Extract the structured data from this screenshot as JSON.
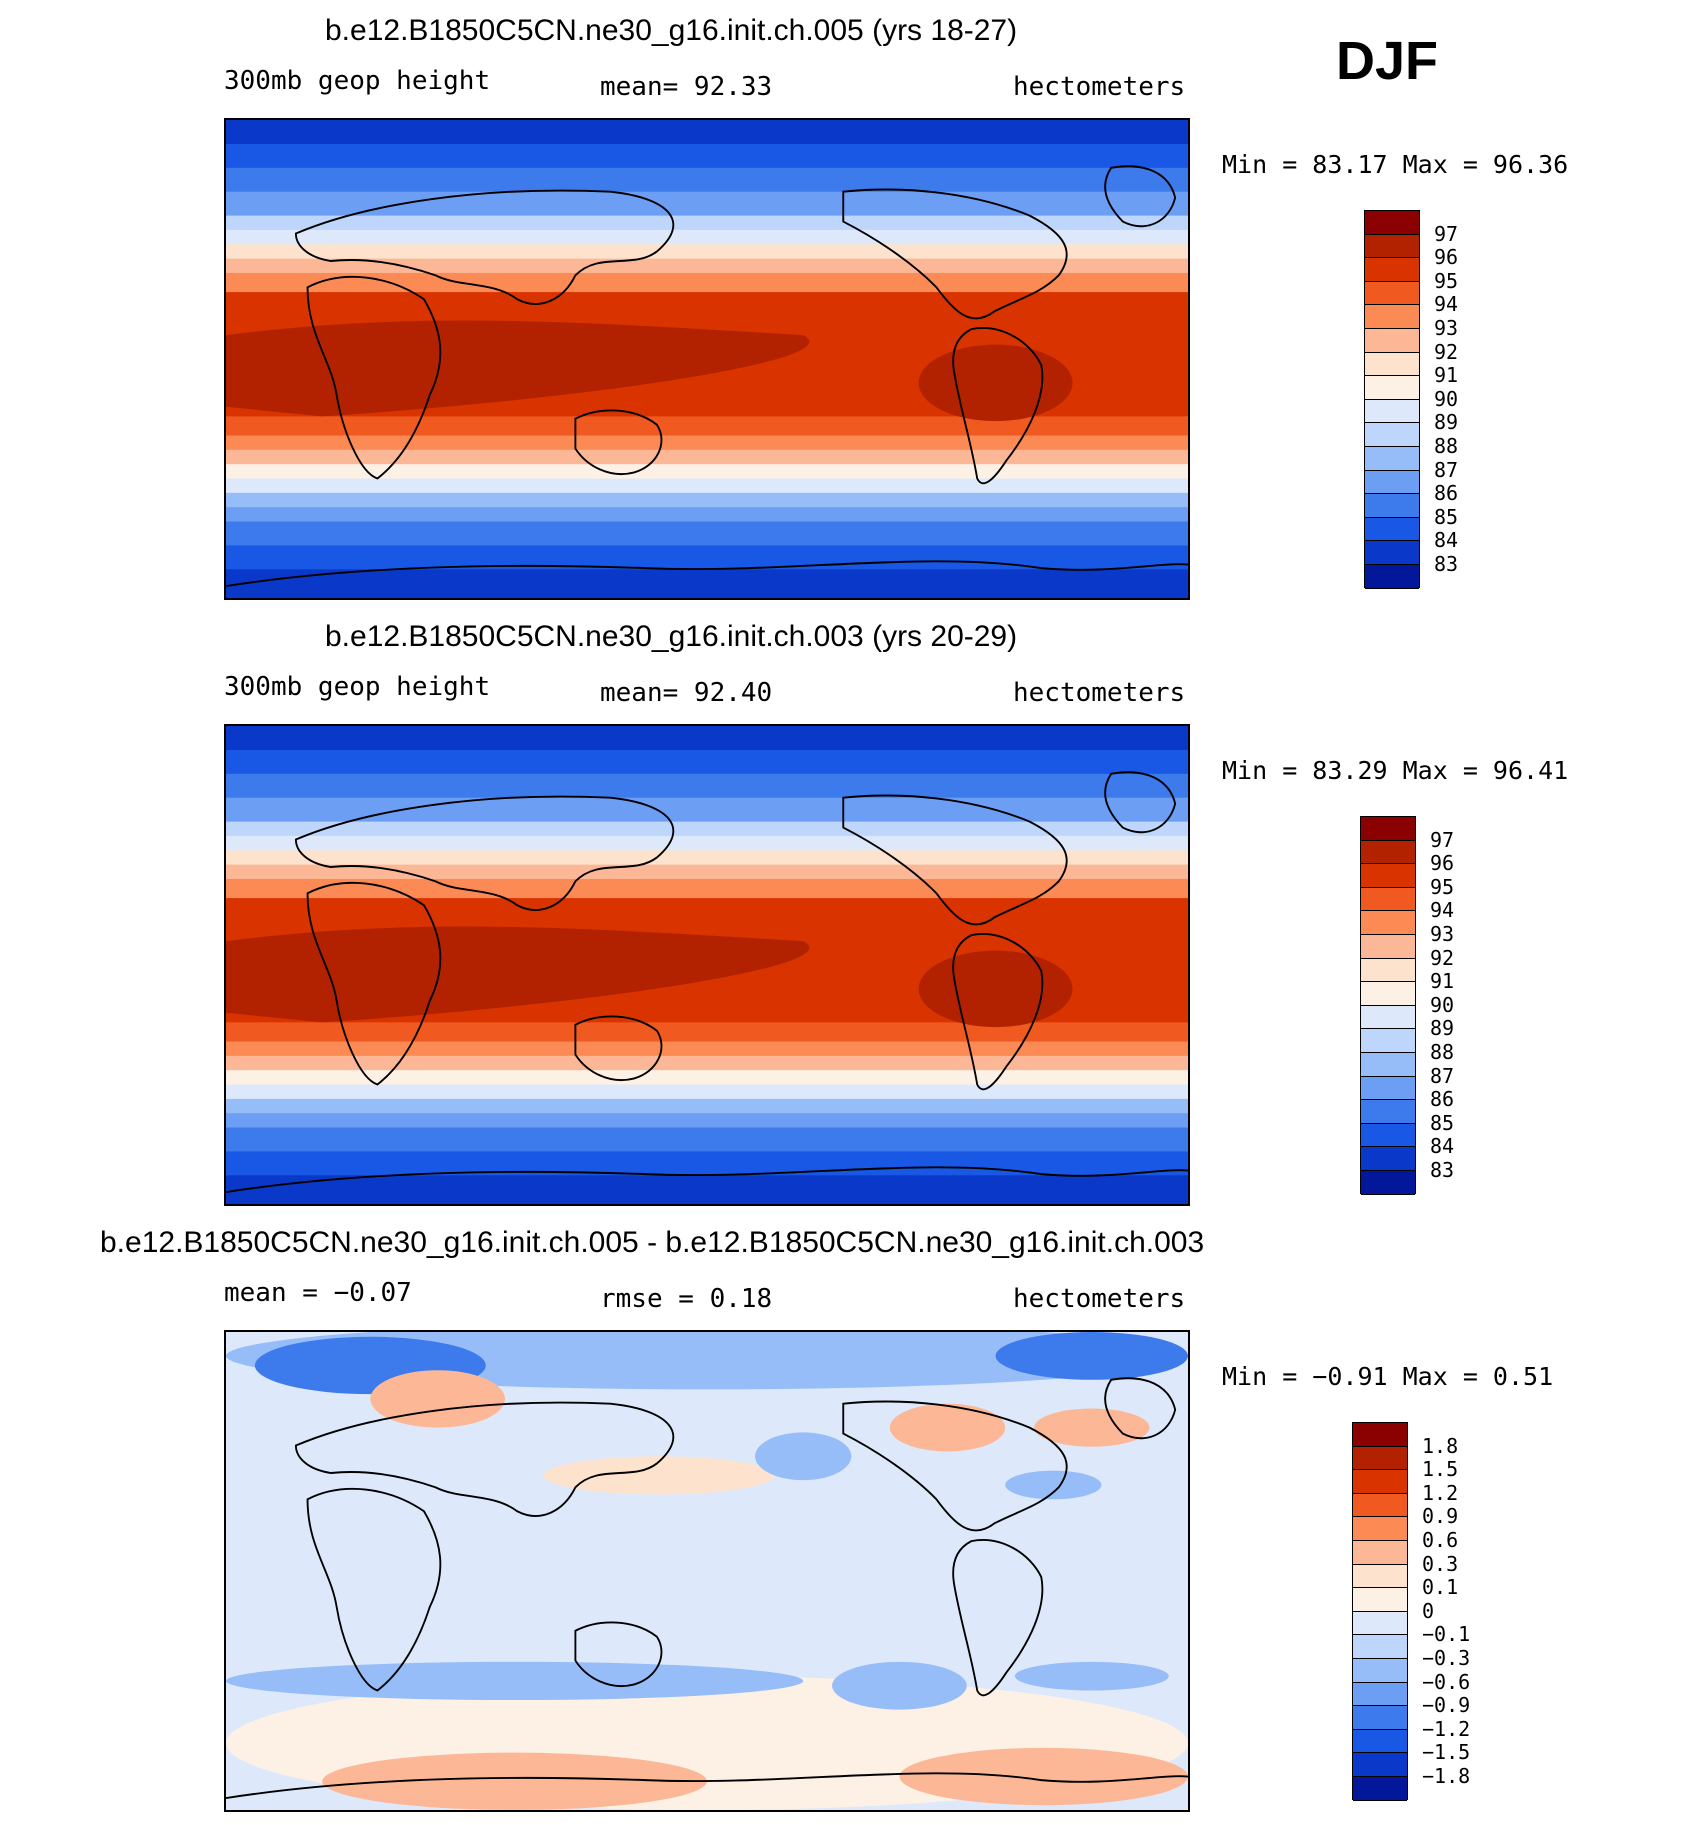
{
  "season": "DJF",
  "panels": [
    {
      "title": "b.e12.B1850C5CN.ne30_g16.init.ch.005 (yrs 18-27)",
      "left_label": "300mb geop height",
      "mid_label": "mean=   92.33",
      "right_label": "hectometers",
      "minmax": "Min =   83.17 Max =   96.36",
      "palette": "ref",
      "levels": [
        "97",
        "96",
        "95",
        "94",
        "93",
        "92",
        "91",
        "90",
        "89",
        "88",
        "87",
        "86",
        "85",
        "84",
        "83"
      ]
    },
    {
      "title": "b.e12.B1850C5CN.ne30_g16.init.ch.003 (yrs 20-29)",
      "left_label": "300mb geop height",
      "mid_label": "mean=   92.40",
      "right_label": "hectometers",
      "minmax": "Min =   83.29 Max =   96.41",
      "palette": "ref",
      "levels": [
        "97",
        "96",
        "95",
        "94",
        "93",
        "92",
        "91",
        "90",
        "89",
        "88",
        "87",
        "86",
        "85",
        "84",
        "83"
      ]
    },
    {
      "title": "b.e12.B1850C5CN.ne30_g16.init.ch.005 - b.e12.B1850C5CN.ne30_g16.init.ch.003",
      "left_label": "mean =   −0.07",
      "mid_label": "rmse =    0.18",
      "right_label": "hectometers",
      "minmax": "Min =  −0.91 Max =    0.51",
      "palette": "diff",
      "levels": [
        "1.8",
        "1.5",
        "1.2",
        "0.9",
        "0.6",
        "0.3",
        "0.1",
        "0",
        "−0.1",
        "−0.3",
        "−0.6",
        "−0.9",
        "−1.2",
        "−1.5",
        "−1.8"
      ]
    }
  ],
  "colors": {
    "palette": [
      "#8b0000",
      "#b22200",
      "#d93300",
      "#f05a20",
      "#fb8a55",
      "#fcb896",
      "#fde3cd",
      "#fdf1e6",
      "#dde9fa",
      "#bed6fb",
      "#97bdf8",
      "#6c9ef3",
      "#3d7bed",
      "#1858e5",
      "#0a38c8",
      "#02179a"
    ]
  }
}
